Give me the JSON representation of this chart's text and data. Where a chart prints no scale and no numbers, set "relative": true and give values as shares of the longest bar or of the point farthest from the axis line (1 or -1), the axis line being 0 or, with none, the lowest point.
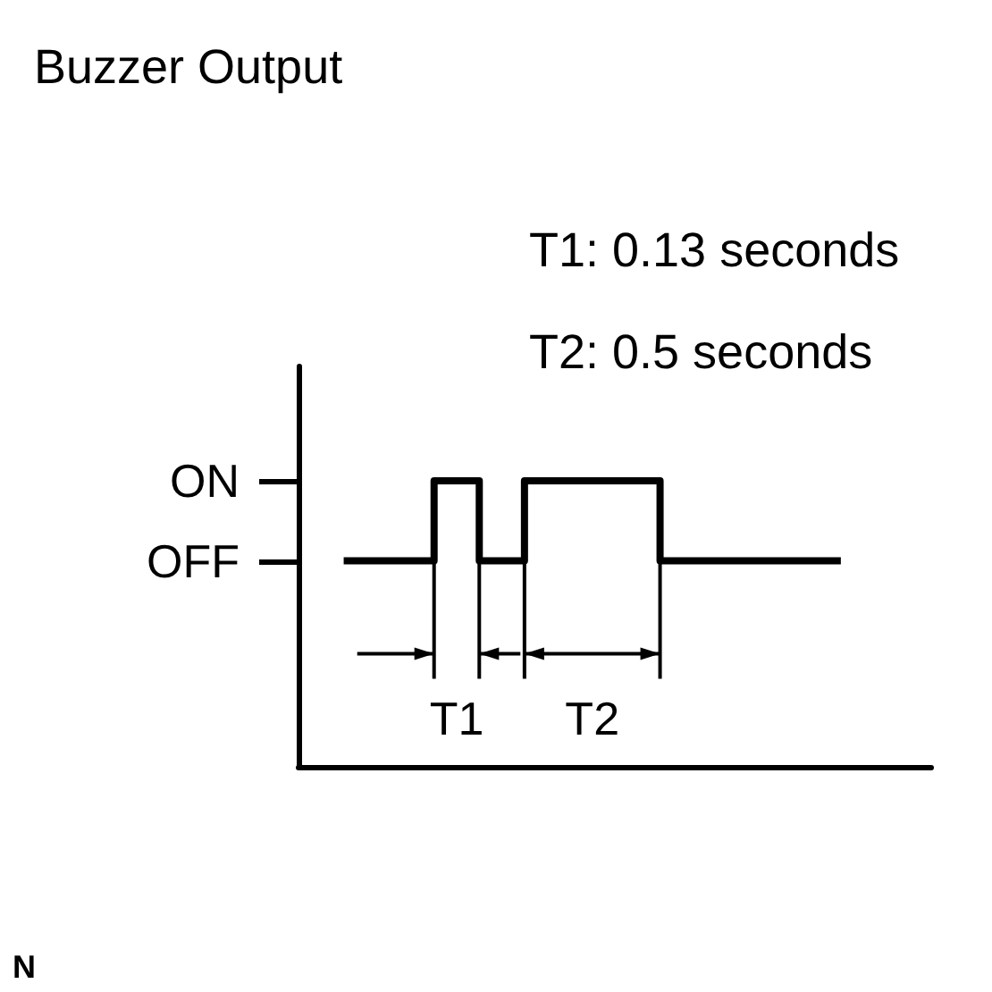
{
  "chart_data": {
    "type": "step",
    "title": "Buzzer Output",
    "categories": [
      null,
      null,
      null,
      null,
      null,
      null,
      null,
      null,
      null,
      null,
      null,
      null,
      null,
      null,
      null
    ],
    "values": [
      null,
      0.72,
      0.72,
      1,
      0.72,
      1,
      1,
      1,
      0.72,
      0.72,
      0.72,
      0.72,
      0.72,
      null,
      null
    ],
    "color": "#000000",
    "relative": true,
    "marker": "none",
    "line_style": "solid",
    "annotations": [
      "T1: 0.13 seconds",
      "T2: 0.5 seconds",
      "ON",
      "OFF",
      "T1",
      "T2",
      "N"
    ]
  }
}
